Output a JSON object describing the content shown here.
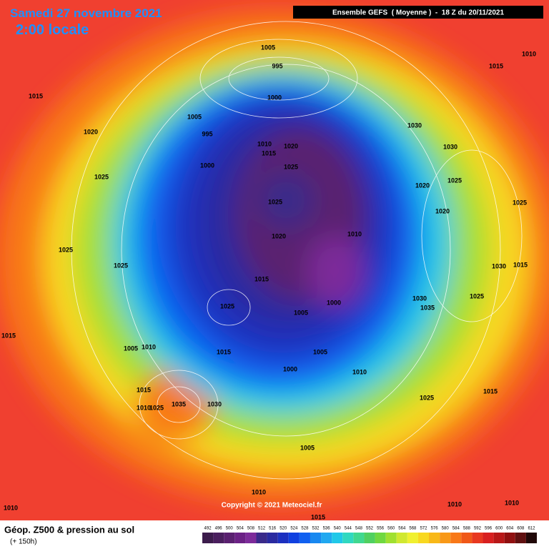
{
  "header": {
    "date": "Samedi 27 novembre 2021",
    "time": "2:00 locale",
    "model": "Ensemble GEFS  ( Moyenne )  -  18 Z du 20/11/2021"
  },
  "pressure_labels": [
    1005,
    995,
    1000,
    1005,
    995,
    1010,
    1015,
    1020,
    1000,
    1025,
    1025,
    1020,
    1010,
    1015,
    1025,
    1000,
    1005,
    1005,
    1000,
    1010,
    1015,
    1005,
    1010,
    1015,
    1010,
    1025,
    1035,
    1030,
    1015,
    1010,
    1010,
    1015,
    1005,
    1025,
    1015,
    1010,
    1010,
    1030,
    1035,
    1025,
    1030,
    1015,
    1025,
    1020,
    1020,
    1025,
    1030,
    1030,
    1015,
    1010,
    1015,
    1020,
    1025,
    1025,
    1025
  ],
  "footer": {
    "title": "Géop. Z500 & pression au sol",
    "lead": "(+ 150h)",
    "copyright": "Copyright © 2021 Meteociel.fr"
  },
  "scale": [
    {
      "value": 492,
      "color": "#3c1c4c"
    },
    {
      "value": 496,
      "color": "#4a1f5e"
    },
    {
      "value": 500,
      "color": "#5a2070"
    },
    {
      "value": 504,
      "color": "#6b2185"
    },
    {
      "value": 508,
      "color": "#7d2b9a"
    },
    {
      "value": 512,
      "color": "#3a2a8a"
    },
    {
      "value": 516,
      "color": "#2a2aa0"
    },
    {
      "value": 520,
      "color": "#1c30c0"
    },
    {
      "value": 524,
      "color": "#1040e0"
    },
    {
      "value": 528,
      "color": "#1060f0"
    },
    {
      "value": 532,
      "color": "#1888f0"
    },
    {
      "value": 536,
      "color": "#20a8f0"
    },
    {
      "value": 540,
      "color": "#20c8e8"
    },
    {
      "value": 544,
      "color": "#30d8c0"
    },
    {
      "value": 548,
      "color": "#40d890"
    },
    {
      "value": 552,
      "color": "#50d060"
    },
    {
      "value": 556,
      "color": "#70d840"
    },
    {
      "value": 560,
      "color": "#a0e030"
    },
    {
      "value": 564,
      "color": "#d0e830"
    },
    {
      "value": 568,
      "color": "#f0f030"
    },
    {
      "value": 572,
      "color": "#f8d820"
    },
    {
      "value": 576,
      "color": "#f8b818"
    },
    {
      "value": 580,
      "color": "#f89818"
    },
    {
      "value": 584,
      "color": "#f87818"
    },
    {
      "value": 588,
      "color": "#f05818"
    },
    {
      "value": 592,
      "color": "#e83820"
    },
    {
      "value": 596,
      "color": "#d82020"
    },
    {
      "value": 600,
      "color": "#b81818"
    },
    {
      "value": 604,
      "color": "#901010"
    },
    {
      "value": 608,
      "color": "#601010"
    },
    {
      "value": 612,
      "color": "#200808"
    }
  ]
}
